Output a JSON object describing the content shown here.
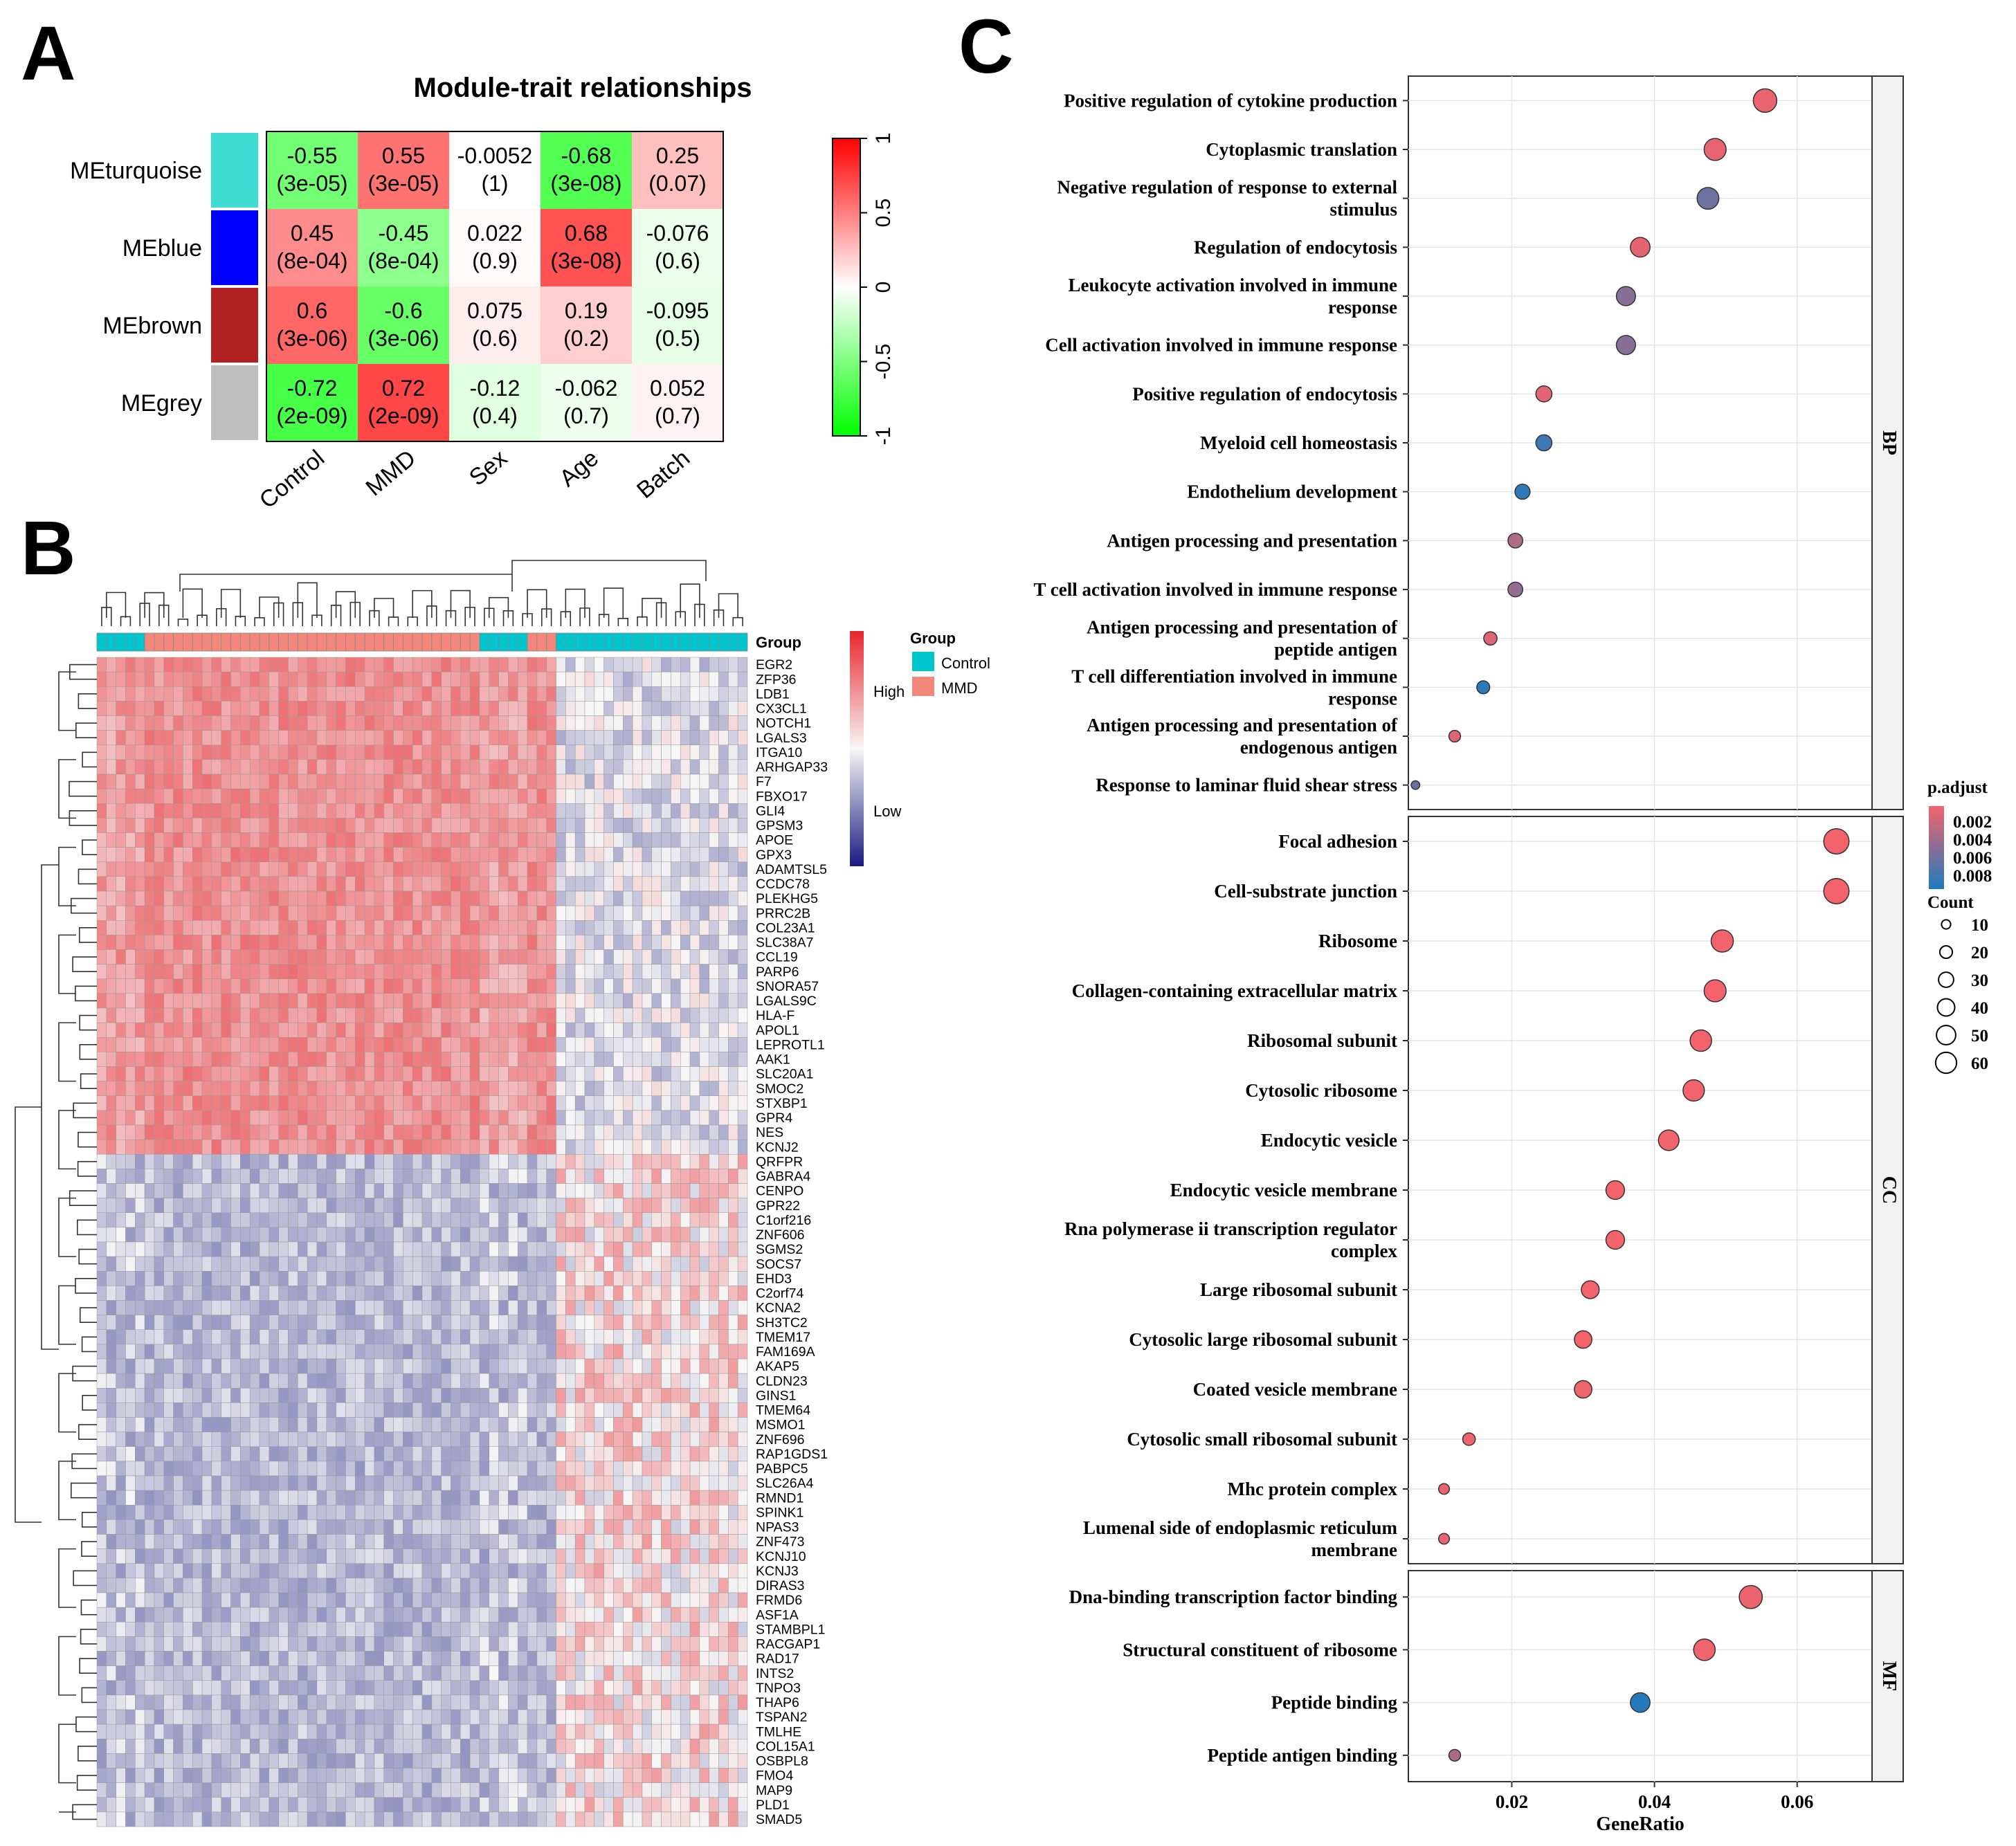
{
  "panels": {
    "a": "A",
    "b": "B",
    "c": "C"
  },
  "chart_data": [
    {
      "type": "heatmap",
      "title": "Module-trait relationships",
      "rows": [
        "MEturquoise",
        "MEblue",
        "MEbrown",
        "MEgrey"
      ],
      "row_colors": [
        "#3fdcd4",
        "#0000ff",
        "#b22222",
        "#bebebe"
      ],
      "columns": [
        "Control",
        "MMD",
        "Sex",
        "Age",
        "Batch"
      ],
      "correlations": [
        [
          -0.55,
          0.55,
          -0.0052,
          -0.68,
          0.25
        ],
        [
          0.45,
          -0.45,
          0.022,
          0.68,
          -0.076
        ],
        [
          0.6,
          -0.6,
          0.075,
          0.19,
          -0.095
        ],
        [
          -0.72,
          0.72,
          -0.12,
          -0.062,
          0.052
        ]
      ],
      "cell_text": [
        [
          "-0.55",
          "0.55",
          "-0.0052",
          "-0.68",
          "0.25"
        ],
        [
          "0.45",
          "-0.45",
          "0.022",
          "0.68",
          "-0.076"
        ],
        [
          "0.6",
          "-0.6",
          "0.075",
          "0.19",
          "-0.095"
        ],
        [
          "-0.72",
          "0.72",
          "-0.12",
          "-0.062",
          "0.052"
        ]
      ],
      "pvalues": [
        [
          "(3e-05)",
          "(3e-05)",
          "(1)",
          "(3e-08)",
          "(0.07)"
        ],
        [
          "(8e-04)",
          "(8e-04)",
          "(0.9)",
          "(3e-08)",
          "(0.6)"
        ],
        [
          "(3e-06)",
          "(3e-06)",
          "(0.6)",
          "(0.2)",
          "(0.5)"
        ],
        [
          "(2e-09)",
          "(2e-09)",
          "(0.4)",
          "(0.7)",
          "(0.7)"
        ]
      ],
      "colorbar": {
        "ticks": [
          "1",
          "0.5",
          "0",
          "-0.5",
          "-1"
        ],
        "range": [
          -1,
          1
        ],
        "low_color": "#00ff00",
        "mid_color": "#ffffff",
        "high_color": "#ff0000"
      }
    },
    {
      "type": "heatmap",
      "genes": [
        "EGR2",
        "ZFP36",
        "LDB1",
        "CX3CL1",
        "NOTCH1",
        "LGALS3",
        "ITGA10",
        "ARHGAP33",
        "F7",
        "FBXO17",
        "GLI4",
        "GPSM3",
        "APOE",
        "GPX3",
        "ADAMTSL5",
        "CCDC78",
        "PLEKHG5",
        "PRRC2B",
        "COL23A1",
        "SLC38A7",
        "CCL19",
        "PARP6",
        "SNORA57",
        "LGALS9C",
        "HLA-F",
        "APOL1",
        "LEPROTL1",
        "AAK1",
        "SLC20A1",
        "SMOC2",
        "STXBP1",
        "GPR4",
        "NES",
        "KCNJ2",
        "QRFPR",
        "GABRA4",
        "CENPO",
        "GPR22",
        "C1orf216",
        "ZNF606",
        "SGMS2",
        "SOCS7",
        "EHD3",
        "C2orf74",
        "KCNA2",
        "SH3TC2",
        "TMEM17",
        "FAM169A",
        "AKAP5",
        "CLDN23",
        "GINS1",
        "TMEM64",
        "MSMO1",
        "ZNF696",
        "RAP1GDS1",
        "PABPC5",
        "SLC26A4",
        "RMND1",
        "SPINK1",
        "NPAS3",
        "ZNF473",
        "KCNJ10",
        "KCNJ3",
        "DIRAS3",
        "FRMD6",
        "ASF1A",
        "STAMBPL1",
        "RACGAP1",
        "RAD17",
        "INTS2",
        "TNPO3",
        "THAP6",
        "TSPAN2",
        "TMLHE",
        "COL15A1",
        "OSBPL8",
        "FMO4",
        "MAP9",
        "PLD1",
        "SMAD5"
      ],
      "n_up_genes": 34,
      "sample_groups": [
        "Control",
        "Control",
        "Control",
        "Control",
        "Control",
        "MMD",
        "MMD",
        "MMD",
        "MMD",
        "MMD",
        "MMD",
        "MMD",
        "MMD",
        "MMD",
        "MMD",
        "MMD",
        "MMD",
        "MMD",
        "MMD",
        "MMD",
        "MMD",
        "MMD",
        "MMD",
        "MMD",
        "MMD",
        "MMD",
        "MMD",
        "MMD",
        "MMD",
        "MMD",
        "MMD",
        "MMD",
        "MMD",
        "MMD",
        "MMD",
        "MMD",
        "MMD",
        "MMD",
        "MMD",
        "MMD",
        "Control",
        "Control",
        "Control",
        "Control",
        "Control",
        "MMD",
        "MMD",
        "MMD",
        "Control",
        "Control",
        "Control",
        "Control",
        "Control",
        "Control",
        "Control",
        "Control",
        "Control",
        "Control",
        "Control",
        "Control",
        "Control",
        "Control",
        "Control",
        "Control",
        "Control",
        "Control",
        "Control",
        "Control"
      ],
      "legend": {
        "group_title": "Group",
        "groups": [
          {
            "name": "Control",
            "color": "#00c5cd"
          },
          {
            "name": "MMD",
            "color": "#f4877b"
          }
        ],
        "high_label": "High",
        "low_label": "Low",
        "high_color": "#e8262d",
        "low_color": "#1a1a80"
      }
    },
    {
      "type": "scatter",
      "xlabel": "GeneRatio",
      "x_ticks": [
        0.02,
        0.04,
        0.06
      ],
      "x_tick_labels": [
        "0.02",
        "0.04",
        "0.06"
      ],
      "xlim": [
        0.0055,
        0.0705
      ],
      "facets": [
        {
          "name": "BP",
          "terms": [
            {
              "lines": [
                "Positive regulation of cytokine production"
              ],
              "x": 0.0555,
              "padj": 0.0005,
              "count": 54
            },
            {
              "lines": [
                "Cytoplasmic translation"
              ],
              "x": 0.0485,
              "padj": 0.0006,
              "count": 47
            },
            {
              "lines": [
                "Negative regulation of response to external",
                "stimulus"
              ],
              "x": 0.0475,
              "padj": 0.0055,
              "count": 46
            },
            {
              "lines": [
                "Regulation of endocytosis"
              ],
              "x": 0.038,
              "padj": 0.0008,
              "count": 37
            },
            {
              "lines": [
                "Leukocyte activation involved in immune",
                "response"
              ],
              "x": 0.036,
              "padj": 0.0045,
              "count": 35
            },
            {
              "lines": [
                "Cell activation involved in immune response"
              ],
              "x": 0.036,
              "padj": 0.0045,
              "count": 35
            },
            {
              "lines": [
                "Positive regulation of endocytosis"
              ],
              "x": 0.0245,
              "padj": 0.0008,
              "count": 24
            },
            {
              "lines": [
                "Myeloid cell homeostasis"
              ],
              "x": 0.0245,
              "padj": 0.0075,
              "count": 24
            },
            {
              "lines": [
                "Endothelium development"
              ],
              "x": 0.0215,
              "padj": 0.008,
              "count": 21
            },
            {
              "lines": [
                "Antigen processing and presentation"
              ],
              "x": 0.0205,
              "padj": 0.003,
              "count": 20
            },
            {
              "lines": [
                "T cell activation involved in immune response"
              ],
              "x": 0.0205,
              "padj": 0.004,
              "count": 20
            },
            {
              "lines": [
                "Antigen processing and presentation of",
                "peptide antigen"
              ],
              "x": 0.017,
              "padj": 0.001,
              "count": 16
            },
            {
              "lines": [
                "T cell differentiation involved in immune",
                "response"
              ],
              "x": 0.016,
              "padj": 0.0082,
              "count": 15
            },
            {
              "lines": [
                "Antigen processing and presentation of",
                "endogenous antigen"
              ],
              "x": 0.012,
              "padj": 0.001,
              "count": 12
            },
            {
              "lines": [
                "Response to laminar fluid shear stress"
              ],
              "x": 0.0065,
              "padj": 0.006,
              "count": 6
            }
          ]
        },
        {
          "name": "CC",
          "terms": [
            {
              "lines": [
                "Focal adhesion"
              ],
              "x": 0.0655,
              "padj": 0.0001,
              "count": 63
            },
            {
              "lines": [
                "Cell-substrate junction"
              ],
              "x": 0.0655,
              "padj": 0.0001,
              "count": 63
            },
            {
              "lines": [
                "Ribosome"
              ],
              "x": 0.0495,
              "padj": 0.0002,
              "count": 48
            },
            {
              "lines": [
                "Collagen-containing extracellular matrix"
              ],
              "x": 0.0485,
              "padj": 0.0001,
              "count": 47
            },
            {
              "lines": [
                "Ribosomal subunit"
              ],
              "x": 0.0465,
              "padj": 0.0002,
              "count": 45
            },
            {
              "lines": [
                "Cytosolic ribosome"
              ],
              "x": 0.0455,
              "padj": 0.0002,
              "count": 44
            },
            {
              "lines": [
                "Endocytic vesicle"
              ],
              "x": 0.042,
              "padj": 0.0003,
              "count": 41
            },
            {
              "lines": [
                "Endocytic vesicle membrane"
              ],
              "x": 0.0345,
              "padj": 0.0002,
              "count": 33
            },
            {
              "lines": [
                "Rna polymerase ii transcription regulator",
                "complex"
              ],
              "x": 0.0345,
              "padj": 0.0003,
              "count": 33
            },
            {
              "lines": [
                "Large ribosomal subunit"
              ],
              "x": 0.031,
              "padj": 0.0002,
              "count": 30
            },
            {
              "lines": [
                "Cytosolic large ribosomal subunit"
              ],
              "x": 0.03,
              "padj": 0.0002,
              "count": 29
            },
            {
              "lines": [
                "Coated vesicle membrane"
              ],
              "x": 0.03,
              "padj": 0.0003,
              "count": 29
            },
            {
              "lines": [
                "Cytosolic small ribosomal subunit"
              ],
              "x": 0.014,
              "padj": 0.0003,
              "count": 14
            },
            {
              "lines": [
                "Mhc protein complex"
              ],
              "x": 0.0105,
              "padj": 0.0005,
              "count": 10
            },
            {
              "lines": [
                "Lumenal side of endoplasmic reticulum",
                "membrane"
              ],
              "x": 0.0105,
              "padj": 0.0006,
              "count": 10
            }
          ]
        },
        {
          "name": "MF",
          "terms": [
            {
              "lines": [
                "Dna-binding transcription factor binding"
              ],
              "x": 0.0535,
              "padj": 0.0004,
              "count": 52
            },
            {
              "lines": [
                "Structural constituent of ribosome"
              ],
              "x": 0.047,
              "padj": 0.0003,
              "count": 45
            },
            {
              "lines": [
                "Peptide binding"
              ],
              "x": 0.038,
              "padj": 0.0085,
              "count": 37
            },
            {
              "lines": [
                "Peptide antigen binding"
              ],
              "x": 0.012,
              "padj": 0.003,
              "count": 12
            }
          ]
        }
      ],
      "legend": {
        "padj_title": "p.adjust",
        "padj_ticks": [
          "0.002",
          "0.004",
          "0.006",
          "0.008"
        ],
        "padj_range": [
          0.0001,
          0.0087
        ],
        "low_color": "#f4636b",
        "high_color": "#1f7bbf",
        "count_title": "Count",
        "count_values": [
          10,
          20,
          30,
          40,
          50,
          60
        ]
      }
    }
  ]
}
